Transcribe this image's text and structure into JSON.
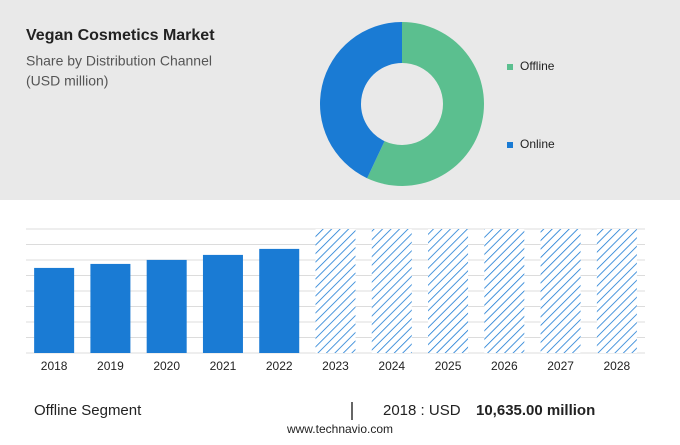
{
  "chart_data": [
    {
      "type": "pie",
      "title": "Vegan Cosmetics Market",
      "subtitle": "Share by Distribution Channel",
      "unit": "(USD million)",
      "series": [
        {
          "name": "Offline",
          "color": "#5bbf8f",
          "values": [
            57
          ]
        },
        {
          "name": "Online",
          "color": "#1a7bd4",
          "values": [
            43
          ]
        }
      ]
    },
    {
      "type": "bar",
      "categories": [
        "2018",
        "2019",
        "2020",
        "2021",
        "2022",
        "2023",
        "2024",
        "2025",
        "2026",
        "2027",
        "2028"
      ],
      "values": [
        10635,
        11135,
        11636,
        12262,
        13013,
        null,
        null,
        null,
        null,
        null,
        null
      ],
      "value_labels": [
        "10,635.00 million",
        null,
        null,
        null,
        null,
        null,
        null,
        null,
        null,
        null,
        null
      ],
      "color": "#1a7bd4",
      "ylim": [
        0,
        15500
      ]
    }
  ],
  "footer": {
    "segment": "Offline Segment",
    "prefix": "2018 : USD",
    "source": "www.technavio.com"
  }
}
